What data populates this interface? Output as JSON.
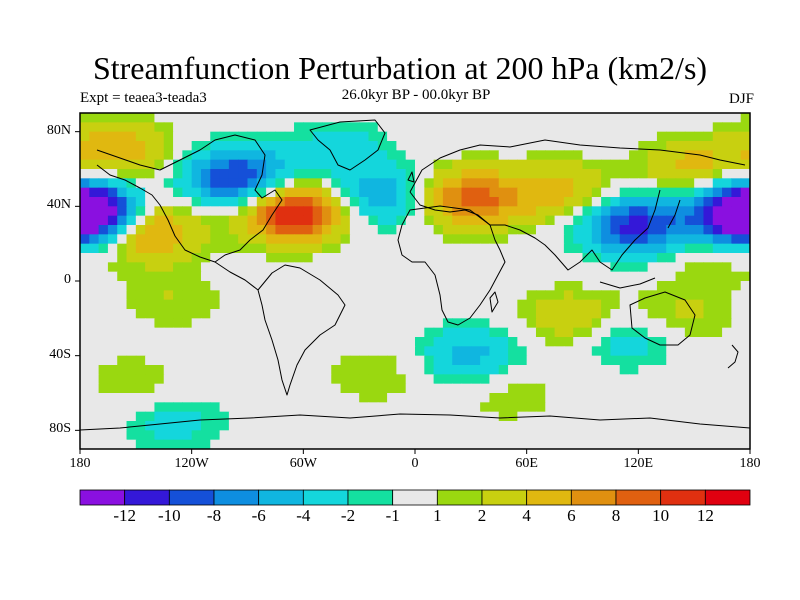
{
  "title": "Streamfunction Perturbation at 200 hPa (km2/s)",
  "experiment": "Expt = teaea3-teada3",
  "period": "26.0kyr BP - 00.0kyr BP",
  "season": "DJF",
  "lat_labels": [
    "80N",
    "40N",
    "0",
    "40S",
    "80S"
  ],
  "lon_labels": [
    "180",
    "120W",
    "60W",
    "0",
    "60E",
    "120E",
    "180"
  ],
  "colorbar": {
    "labels": [
      "-12",
      "-10",
      "-8",
      "-6",
      "-4",
      "-2",
      "-1",
      "1",
      "2",
      "4",
      "6",
      "8",
      "10",
      "12"
    ],
    "colors": [
      "#8a10e0",
      "#3418d8",
      "#1550d8",
      "#0e8ee0",
      "#10b6e0",
      "#14d6dc",
      "#14e0a0",
      "#e8e8e8",
      "#9ad810",
      "#c8d010",
      "#e0b810",
      "#e09010",
      "#e06010",
      "#e03010",
      "#e00010"
    ]
  },
  "chart_data": {
    "type": "heatmap",
    "variable": "Streamfunction perturbation",
    "level": "200 hPa",
    "units": "km2/s",
    "lon_range": [
      -180,
      180
    ],
    "lat_range": [
      -90,
      90
    ],
    "levels": [
      -12,
      -10,
      -8,
      -6,
      -4,
      -2,
      -1,
      1,
      2,
      4,
      6,
      8,
      10,
      12
    ],
    "centers": [
      {
        "lon": -65,
        "lat": 37,
        "value": 13
      },
      {
        "lon": -145,
        "lat": 27,
        "value": 8
      },
      {
        "lon": -160,
        "lat": 70,
        "value": 6
      },
      {
        "lon": 30,
        "lat": 44,
        "value": 9
      },
      {
        "lon": 80,
        "lat": 48,
        "value": 5
      },
      {
        "lon": 150,
        "lat": 60,
        "value": 5
      },
      {
        "lon": -95,
        "lat": 55,
        "value": -11
      },
      {
        "lon": -178,
        "lat": 35,
        "value": -12
      },
      {
        "lon": 180,
        "lat": 38,
        "value": -11
      },
      {
        "lon": 118,
        "lat": 30,
        "value": -11
      },
      {
        "lon": -20,
        "lat": 45,
        "value": -6
      },
      {
        "lon": -40,
        "lat": 70,
        "value": -3
      },
      {
        "lon": 30,
        "lat": -40,
        "value": -5
      },
      {
        "lon": -130,
        "lat": -75,
        "value": -3
      },
      {
        "lon": 115,
        "lat": -30,
        "value": -4
      },
      {
        "lon": 140,
        "lat": -20,
        "value": 3
      },
      {
        "lon": 85,
        "lat": -20,
        "value": 4
      },
      {
        "lon": -130,
        "lat": -10,
        "value": 2
      },
      {
        "lon": -150,
        "lat": -55,
        "value": 2
      },
      {
        "lon": 50,
        "lat": -60,
        "value": 2
      },
      {
        "lon": -20,
        "lat": -50,
        "value": 2
      },
      {
        "lon": 160,
        "lat": 10,
        "value": 2
      }
    ]
  }
}
